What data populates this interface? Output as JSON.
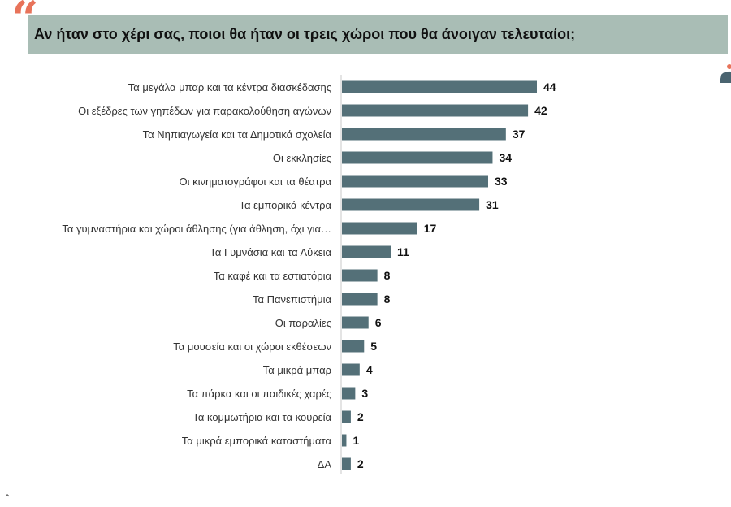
{
  "header": {
    "title": "Αν ήταν στο χέρι σας, ποιοι θα ήταν οι τρεις χώροι που θα άνοιγαν τελευταίοι;"
  },
  "colors": {
    "bar": "#547078",
    "banner": "#a9bdb5",
    "quote": "#e8735a"
  },
  "chart_data": {
    "type": "bar",
    "orientation": "horizontal",
    "categories": [
      "Τα μεγάλα μπαρ και τα κέντρα διασκέδασης",
      "Οι εξέδρες των γηπέδων για παρακολούθηση αγώνων",
      "Τα Νηπιαγωγεία και τα Δημοτικά σχολεία",
      "Οι εκκλησίες",
      "Οι κινηματογράφοι και τα θέατρα",
      "Τα εμπορικά κέντρα",
      "Τα γυμναστήρια και χώροι άθλησης (για άθληση, όχι για…",
      "Τα Γυμνάσια και τα Λύκεια",
      "Τα καφέ και τα εστιατόρια",
      "Τα Πανεπιστήμια",
      "Οι παραλίες",
      "Τα μουσεία και οι χώροι εκθέσεων",
      "Τα μικρά μπαρ",
      "Τα πάρκα και οι παιδικές χαρές",
      "Τα κομμωτήρια και τα κουρεία",
      "Τα μικρά εμπορικά καταστήματα",
      "ΔΑ"
    ],
    "values": [
      44,
      42,
      37,
      34,
      33,
      31,
      17,
      11,
      8,
      8,
      6,
      5,
      4,
      3,
      2,
      1,
      2
    ],
    "value_labels": [
      "44",
      "42",
      "37",
      "34",
      "33",
      "31",
      "17",
      "11",
      "8",
      "8",
      "6",
      "5",
      "4",
      "3",
      "2",
      "1",
      "2"
    ],
    "xlim": [
      0,
      44
    ],
    "grid": false,
    "legend": "none"
  }
}
